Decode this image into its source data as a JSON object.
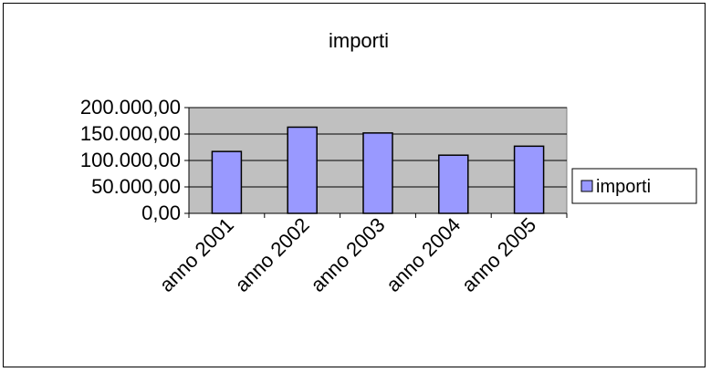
{
  "chart_data": {
    "type": "bar",
    "title": "importi",
    "categories": [
      "anno 2001",
      "anno 2002",
      "anno 2003",
      "anno 2004",
      "anno 2005"
    ],
    "series": [
      {
        "name": "importi",
        "values": [
          117000,
          163000,
          152000,
          110000,
          127000
        ],
        "color": "#9999ff"
      }
    ],
    "ylim": [
      0,
      200000
    ],
    "yticks": [
      0,
      50000,
      100000,
      150000,
      200000
    ],
    "ytick_labels": [
      "0,00",
      "50.000,00",
      "100.000,00",
      "150.000,00",
      "200.000,00"
    ],
    "xlabel": "",
    "ylabel": "",
    "grid": true,
    "plot_background": "#c0c0c0",
    "legend_position": "right"
  }
}
